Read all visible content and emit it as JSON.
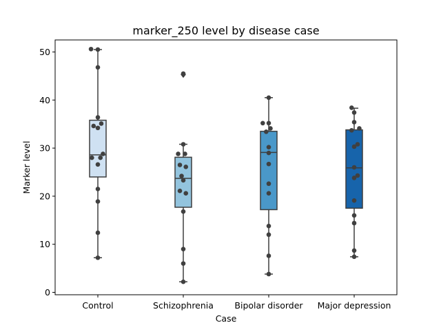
{
  "chart_data": {
    "type": "box",
    "title": "marker_250 level by disease case",
    "xlabel": "Case",
    "ylabel": "Marker level",
    "ylim": [
      -0.5,
      52.5
    ],
    "yticks": [
      0,
      10,
      20,
      30,
      40,
      50
    ],
    "grid": false,
    "legend": "none",
    "categories": [
      "Control",
      "Schizophrenia",
      "Bipolar disorder",
      "Major depression"
    ],
    "colors": [
      "#cfe1f2",
      "#93c4de",
      "#4a98c9",
      "#1764ab"
    ],
    "boxes": [
      {
        "q1": 24.0,
        "median": 28.6,
        "q3": 35.8,
        "whisker_low": 7.2,
        "whisker_high": 50.5,
        "outliers": []
      },
      {
        "q1": 17.7,
        "median": 23.7,
        "q3": 28.1,
        "whisker_low": 2.2,
        "whisker_high": 30.8,
        "outliers": [
          45.3
        ]
      },
      {
        "q1": 17.2,
        "median": 29.1,
        "q3": 33.5,
        "whisker_low": 3.8,
        "whisker_high": 40.5,
        "outliers": []
      },
      {
        "q1": 17.5,
        "median": 25.9,
        "q3": 33.8,
        "whisker_low": 7.4,
        "whisker_high": 38.3,
        "outliers": []
      }
    ],
    "points": [
      [
        [
          -0.08,
          50.6
        ],
        [
          0.0,
          50.5
        ],
        [
          0.0,
          46.8
        ],
        [
          0.0,
          36.4
        ],
        [
          -0.05,
          34.6
        ],
        [
          0.0,
          34.2
        ],
        [
          0.04,
          35.1
        ],
        [
          -0.07,
          28.0
        ],
        [
          0.03,
          28.0
        ],
        [
          0.06,
          28.8
        ],
        [
          0.0,
          26.6
        ],
        [
          0.0,
          21.5
        ],
        [
          0.0,
          18.9
        ],
        [
          0.0,
          12.4
        ],
        [
          0.0,
          7.2
        ]
      ],
      [
        [
          0.0,
          45.5
        ],
        [
          0.0,
          30.8
        ],
        [
          -0.06,
          28.8
        ],
        [
          0.02,
          28.8
        ],
        [
          -0.04,
          26.5
        ],
        [
          0.03,
          26.1
        ],
        [
          -0.02,
          24.2
        ],
        [
          0.0,
          23.3
        ],
        [
          -0.04,
          21.1
        ],
        [
          0.03,
          20.6
        ],
        [
          0.0,
          16.8
        ],
        [
          0.0,
          9.0
        ],
        [
          0.0,
          6.0
        ],
        [
          0.0,
          2.2
        ]
      ],
      [
        [
          0.0,
          40.5
        ],
        [
          -0.07,
          35.2
        ],
        [
          0.0,
          35.2
        ],
        [
          0.02,
          34.1
        ],
        [
          -0.03,
          33.4
        ],
        [
          0.0,
          30.2
        ],
        [
          0.0,
          29.0
        ],
        [
          0.0,
          26.7
        ],
        [
          0.0,
          22.6
        ],
        [
          0.0,
          20.6
        ],
        [
          0.0,
          13.8
        ],
        [
          0.0,
          12.0
        ],
        [
          0.0,
          7.6
        ],
        [
          0.0,
          3.8
        ]
      ],
      [
        [
          -0.03,
          38.4
        ],
        [
          0.0,
          37.4
        ],
        [
          0.0,
          35.4
        ],
        [
          -0.03,
          33.7
        ],
        [
          0.06,
          34.1
        ],
        [
          0.04,
          30.8
        ],
        [
          0.0,
          30.3
        ],
        [
          0.0,
          26.0
        ],
        [
          0.04,
          24.3
        ],
        [
          0.0,
          23.8
        ],
        [
          0.0,
          19.1
        ],
        [
          0.0,
          16.0
        ],
        [
          0.0,
          14.4
        ],
        [
          0.0,
          8.7
        ],
        [
          0.0,
          7.4
        ]
      ]
    ]
  }
}
